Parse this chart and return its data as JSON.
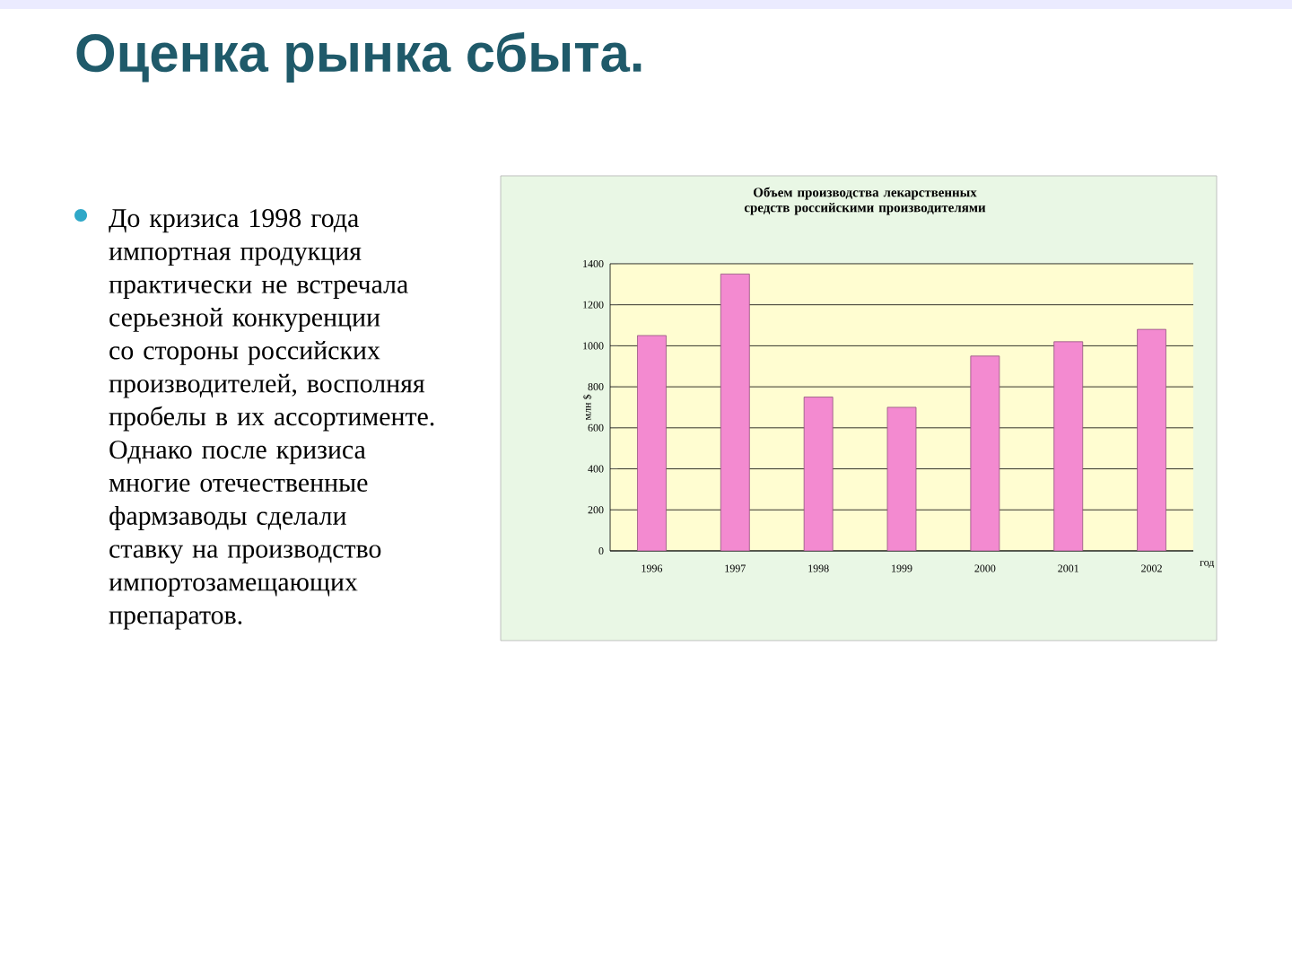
{
  "chart_data": {
    "type": "bar",
    "title": "Оценка рынка сбыта.",
    "subtitle": "Объем производства лекарственных средств российскими производителями",
    "annotations": [
      "До кризиса 1998 года импортная продукция практически не встречала серьезной конкуренции со стороны российских производителей, восполняя пробелы в их ассортименте. Однако после кризиса многие отечественные фармзаводы сделали ставку на производство импортозамещающих препаратов."
    ],
    "xlabel": "год",
    "ylabel": "млн $",
    "categories": [
      "1996",
      "1997",
      "1998",
      "1999",
      "2000",
      "2001",
      "2002"
    ],
    "values": [
      1050,
      1350,
      750,
      700,
      950,
      1020,
      1080
    ],
    "color": "#f38ad0",
    "ylim": [
      0,
      1400
    ],
    "yticks": [
      0,
      200,
      400,
      600,
      800,
      1000,
      1200,
      1400
    ],
    "grid": "y"
  }
}
